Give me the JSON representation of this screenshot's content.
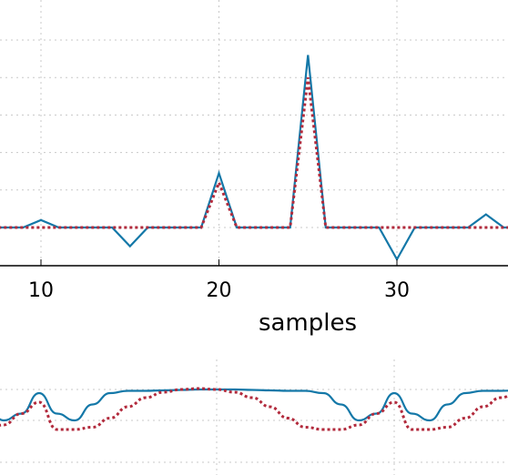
{
  "chart_data": [
    {
      "type": "line",
      "xlabel": "samples",
      "xlim": [
        7.8,
        36.3
      ],
      "ylim": [
        -0.22,
        1.28
      ],
      "x_ticks": [
        10,
        20,
        30
      ],
      "x_tick_labels": [
        "10",
        "20",
        "30"
      ],
      "grid": true,
      "series": [
        {
          "color": "#1478a8",
          "style": "solid",
          "x": [
            7,
            8,
            9,
            10,
            11,
            12,
            13,
            14,
            15,
            16,
            17,
            18,
            19,
            20,
            21,
            22,
            23,
            24,
            25,
            26,
            27,
            28,
            29,
            30,
            31,
            32,
            33,
            34,
            35,
            36,
            37
          ],
          "values": [
            0.0,
            0.0,
            0.0,
            0.04,
            0.0,
            0.0,
            0.0,
            0.0,
            -0.1,
            0.0,
            0.0,
            0.0,
            0.0,
            0.29,
            0.0,
            0.0,
            0.0,
            0.0,
            0.92,
            0.0,
            0.0,
            0.0,
            0.0,
            -0.17,
            0.0,
            0.0,
            0.0,
            0.0,
            0.07,
            0.0,
            0.0
          ]
        },
        {
          "color": "#b22a3c",
          "style": "dotted",
          "x": [
            7,
            8,
            9,
            10,
            11,
            12,
            13,
            14,
            15,
            16,
            17,
            18,
            19,
            20,
            21,
            22,
            23,
            24,
            25,
            26,
            27,
            28,
            29,
            30,
            31,
            32,
            33,
            34,
            35,
            36,
            37
          ],
          "values": [
            0.0,
            0.0,
            0.0,
            0.0,
            0.0,
            0.0,
            0.0,
            0.0,
            0.0,
            0.0,
            0.0,
            0.0,
            0.0,
            0.24,
            0.0,
            0.0,
            0.0,
            0.0,
            0.8,
            0.0,
            0.0,
            0.0,
            0.0,
            0.0,
            0.0,
            0.0,
            0.0,
            0.0,
            0.0,
            0.0,
            0.0
          ]
        }
      ]
    },
    {
      "type": "line",
      "grid": true,
      "series": [
        {
          "color": "#1478a8",
          "style": "solid",
          "x": [
            0,
            0.05,
            0.1,
            0.15,
            0.2,
            0.25,
            0.3,
            0.35,
            0.4,
            0.45,
            0.5,
            0.55,
            0.6,
            0.65,
            0.7,
            0.75,
            0.8,
            0.85,
            0.9,
            0.95,
            1.0
          ],
          "values": [
            0.8,
            0.35,
            0.2,
            0.55,
            0.8,
            0.85,
            0.85,
            0.86,
            0.87,
            0.88,
            0.88,
            0.88,
            0.87,
            0.86,
            0.85,
            0.85,
            0.8,
            0.55,
            0.2,
            0.35,
            0.8
          ]
        },
        {
          "color": "#b22a3c",
          "style": "dotted",
          "x": [
            0,
            0.05,
            0.1,
            0.15,
            0.2,
            0.25,
            0.3,
            0.35,
            0.4,
            0.45,
            0.5,
            0.55,
            0.6,
            0.65,
            0.7,
            0.75,
            0.8,
            0.85,
            0.9,
            0.95,
            1.0
          ],
          "values": [
            0.1,
            0.0,
            0.0,
            0.05,
            0.25,
            0.5,
            0.7,
            0.82,
            0.88,
            0.9,
            0.88,
            0.82,
            0.7,
            0.5,
            0.25,
            0.05,
            0.0,
            0.0,
            0.1,
            0.35,
            0.6
          ]
        }
      ]
    }
  ]
}
